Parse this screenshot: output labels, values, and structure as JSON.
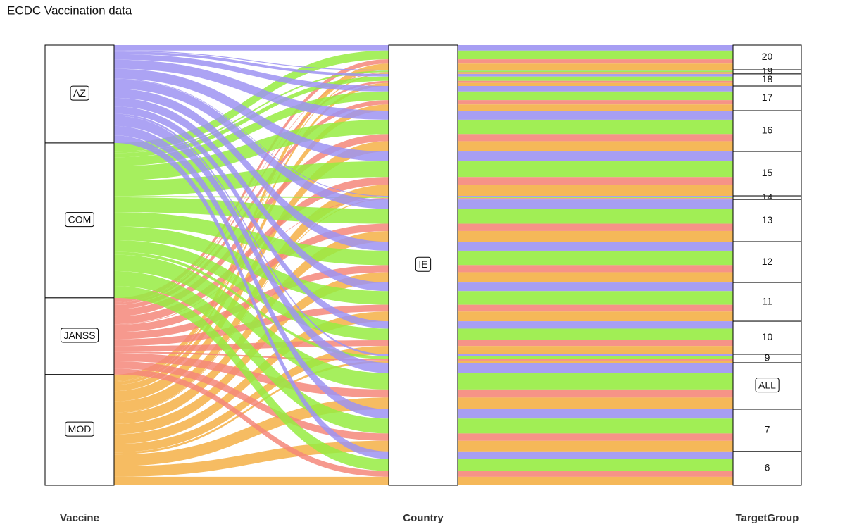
{
  "chart_data": {
    "type": "alluvial",
    "title": "ECDC Vaccination data",
    "axes": [
      "Vaccine",
      "Country",
      "TargetGroup"
    ],
    "country": "IE",
    "categories": [
      "20",
      "19",
      "18",
      "17",
      "16",
      "15",
      "14",
      "13",
      "12",
      "11",
      "10",
      "9",
      "ALL",
      "7",
      "6"
    ],
    "series": [
      {
        "name": "AZ",
        "color": "#9d93f2",
        "values": [
          7.8,
          1.3,
          3.8,
          7.8,
          12.9,
          14.0,
          1.1,
          13.3,
          12.9,
          12.2,
          10.4,
          2.7,
          14.7,
          13.3,
          10.7
        ]
      },
      {
        "name": "COM",
        "color": "#97ec42",
        "values": [
          12.3,
          2.1,
          6.0,
          12.3,
          20.4,
          22.2,
          1.8,
          21.1,
          20.4,
          19.4,
          16.5,
          4.2,
          23.2,
          21.1,
          16.9
        ]
      },
      {
        "name": "JANSS",
        "color": "#f5877a",
        "values": [
          6.1,
          1.0,
          3.0,
          6.1,
          10.1,
          11.0,
          0.9,
          10.4,
          10.1,
          9.6,
          8.2,
          2.1,
          11.5,
          10.4,
          8.4
        ]
      },
      {
        "name": "MOD",
        "color": "#f4b047",
        "values": [
          8.8,
          1.5,
          4.3,
          8.8,
          14.6,
          15.8,
          1.3,
          15.1,
          14.6,
          13.8,
          11.8,
          3.0,
          16.6,
          15.1,
          12.1
        ]
      }
    ]
  }
}
